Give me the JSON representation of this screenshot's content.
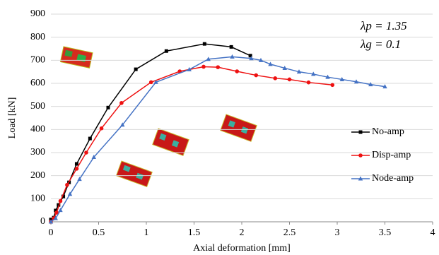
{
  "chart_data": {
    "type": "line",
    "x_label": "Axial deformation [mm]",
    "y_label": "Load [kN]",
    "annotations": [
      "λp = 1.35",
      "λg = 0.1"
    ],
    "xlim": [
      0,
      4
    ],
    "xticks": [
      0,
      0.5,
      1,
      1.5,
      2,
      2.5,
      3,
      3.5,
      4
    ],
    "ylim": [
      0,
      900
    ],
    "yticks": [
      0,
      100,
      200,
      300,
      400,
      500,
      600,
      700,
      800,
      900
    ],
    "grid": true,
    "legend": "right",
    "series": [
      {
        "name": "No-amp",
        "color": "#000000",
        "marker": "square",
        "x": [
          0,
          0.03,
          0.05,
          0.08,
          0.13,
          0.19,
          0.27,
          0.41,
          0.6,
          0.89,
          1.21,
          1.61,
          1.89,
          2.09
        ],
        "values": [
          10,
          18,
          49,
          73,
          110,
          171,
          251,
          361,
          495,
          661,
          740,
          771,
          758,
          720
        ]
      },
      {
        "name": "Disp-amp",
        "color": "#ee1111",
        "marker": "circle",
        "x": [
          0,
          0.03,
          0.06,
          0.1,
          0.17,
          0.27,
          0.37,
          0.53,
          0.74,
          1.05,
          1.35,
          1.6,
          1.75,
          1.95,
          2.15,
          2.35,
          2.5,
          2.7,
          2.95
        ],
        "values": [
          0,
          15,
          40,
          90,
          160,
          230,
          300,
          405,
          515,
          605,
          652,
          672,
          670,
          652,
          635,
          622,
          617,
          604,
          593
        ]
      },
      {
        "name": "Node-amp",
        "color": "#4472c4",
        "marker": "triangle",
        "x": [
          0,
          0.05,
          0.1,
          0.2,
          0.3,
          0.45,
          0.75,
          1.1,
          1.45,
          1.65,
          1.9,
          2.1,
          2.2,
          2.3,
          2.45,
          2.6,
          2.75,
          2.9,
          3.05,
          3.2,
          3.35,
          3.5
        ],
        "values": [
          0,
          15,
          50,
          120,
          185,
          280,
          420,
          605,
          660,
          705,
          715,
          708,
          700,
          683,
          666,
          650,
          640,
          627,
          617,
          607,
          595,
          586
        ]
      }
    ]
  }
}
